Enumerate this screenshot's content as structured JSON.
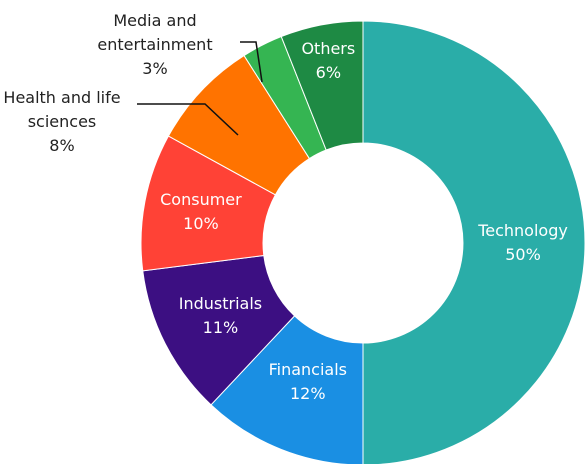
{
  "chart_data": {
    "type": "donut",
    "categories": [
      "Technology",
      "Financials",
      "Industrials",
      "Consumer",
      "Health and life sciences",
      "Media and entertainment",
      "Others"
    ],
    "values": [
      50,
      12,
      11,
      10,
      8,
      3,
      6
    ],
    "value_labels": [
      "50%",
      "12%",
      "11%",
      "10%",
      "8%",
      "3%",
      "6%"
    ],
    "colors": [
      "#2aada8",
      "#1a8fe3",
      "#3c0f82",
      "#ff4236",
      "#ff7300",
      "#35b552",
      "#1e8a44"
    ]
  }
}
